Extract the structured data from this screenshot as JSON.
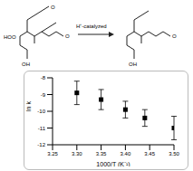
{
  "chart_data": {
    "type": "scatter",
    "x_label": "1000/T (K⁻¹)",
    "y_label": "ln k",
    "annotations": [
      "HOO",
      "O",
      "OH",
      "O",
      "H⁺-catalyzed",
      "O",
      "OH"
    ],
    "x": [
      3.3,
      3.35,
      3.4,
      3.44,
      3.5
    ],
    "values": [
      -8.9,
      -9.3,
      -9.9,
      -10.4,
      -11.0
    ],
    "error": [
      0.7,
      0.6,
      0.5,
      0.5,
      0.7
    ],
    "color": "#000000",
    "marker": "square",
    "xlim": [
      3.25,
      3.5
    ],
    "xticks": [
      {
        "value": 3.25,
        "label": "3.25"
      },
      {
        "value": 3.3,
        "label": "3.30"
      },
      {
        "value": 3.35,
        "label": "3.35"
      },
      {
        "value": 3.4,
        "label": "3.40"
      },
      {
        "value": 3.45,
        "label": "3.45"
      },
      {
        "value": 3.5,
        "label": "3.50"
      }
    ],
    "ylim": [
      -12,
      -8
    ],
    "yticks": [
      -12,
      -11,
      -10,
      -9,
      -8
    ],
    "grid": false
  }
}
